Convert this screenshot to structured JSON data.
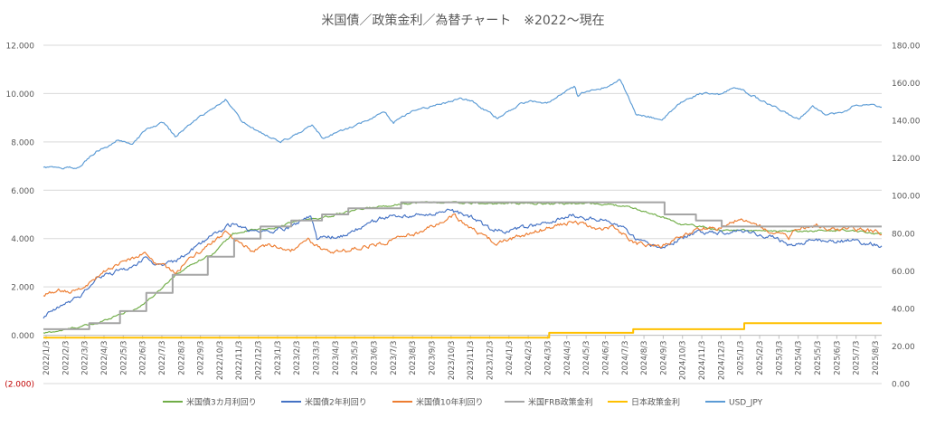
{
  "chart_data": {
    "type": "line",
    "title": "米国債／政策金利／為替チャート　※2022～現在",
    "left_axis": {
      "ylim": [
        -2,
        12
      ],
      "ticks": [
        -2,
        0,
        2,
        4,
        6,
        8,
        10,
        12
      ],
      "tick_labels": [
        "(2.000)",
        "0.000",
        "2.000",
        "4.000",
        "6.000",
        "8.000",
        "10.000",
        "12.000"
      ],
      "negative_label_color": "#c00000"
    },
    "right_axis": {
      "ylim": [
        0,
        180
      ],
      "ticks": [
        0,
        20,
        40,
        60,
        80,
        100,
        120,
        140,
        160,
        180
      ],
      "tick_labels": [
        "0.00",
        "20.00",
        "40.00",
        "60.00",
        "80.00",
        "100.00",
        "120.00",
        "140.00",
        "160.00",
        "180.00"
      ]
    },
    "x_axis": {
      "start": "2022/1/3",
      "end": "2025/8/31",
      "tick_labels": [
        "2022/1/3",
        "2022/2/3",
        "2022/3/3",
        "2022/4/3",
        "2022/5/3",
        "2022/6/3",
        "2022/7/3",
        "2022/8/3",
        "2022/9/3",
        "2022/10/3",
        "2022/11/3",
        "2022/12/3",
        "2023/1/3",
        "2023/2/3",
        "2023/3/3",
        "2023/4/3",
        "2023/5/3",
        "2023/6/3",
        "2023/7/3",
        "2023/8/3",
        "2023/9/3",
        "2023/10/3",
        "2023/11/3",
        "2023/12/3",
        "2024/1/3",
        "2024/2/3",
        "2024/3/3",
        "2024/4/3",
        "2024/5/3",
        "2024/6/3",
        "2024/7/3",
        "2024/8/3",
        "2024/9/3",
        "2024/10/3",
        "2024/11/3",
        "2024/12/3",
        "2025/1/3",
        "2025/2/3",
        "2025/3/3",
        "2025/4/3",
        "2025/5/3",
        "2025/6/3",
        "2025/7/3",
        "2025/8/3"
      ]
    },
    "grid": "horizontal",
    "legend_position": "bottom",
    "series": [
      {
        "name": "米国債3カ月利回り",
        "axis": "left",
        "color": "#70ad47",
        "noise": 0.04,
        "points": [
          [
            "2022/1/3",
            0.08
          ],
          [
            "2022/2/1",
            0.2
          ],
          [
            "2022/3/1",
            0.35
          ],
          [
            "2022/4/1",
            0.5
          ],
          [
            "2022/5/1",
            0.85
          ],
          [
            "2022/6/1",
            1.1
          ],
          [
            "2022/7/1",
            1.7
          ],
          [
            "2022/8/1",
            2.5
          ],
          [
            "2022/9/1",
            3.0
          ],
          [
            "2022/10/1",
            3.4
          ],
          [
            "2022/11/1",
            4.2
          ],
          [
            "2022/12/1",
            4.35
          ],
          [
            "2023/1/1",
            4.4
          ],
          [
            "2023/2/1",
            4.65
          ],
          [
            "2023/3/1",
            4.8
          ],
          [
            "2023/4/1",
            4.9
          ],
          [
            "2023/5/1",
            5.1
          ],
          [
            "2023/6/1",
            5.25
          ],
          [
            "2023/7/1",
            5.35
          ],
          [
            "2023/8/1",
            5.45
          ],
          [
            "2023/9/1",
            5.5
          ],
          [
            "2023/10/1",
            5.5
          ],
          [
            "2023/12/1",
            5.45
          ],
          [
            "2024/3/1",
            5.45
          ],
          [
            "2024/6/1",
            5.45
          ],
          [
            "2024/7/15",
            5.35
          ],
          [
            "2024/8/15",
            5.15
          ],
          [
            "2024/9/15",
            4.9
          ],
          [
            "2024/10/15",
            4.6
          ],
          [
            "2024/11/15",
            4.5
          ],
          [
            "2024/12/15",
            4.35
          ],
          [
            "2025/1/15",
            4.35
          ],
          [
            "2025/3/1",
            4.3
          ],
          [
            "2025/5/1",
            4.3
          ],
          [
            "2025/7/1",
            4.35
          ],
          [
            "2025/8/31",
            4.2
          ]
        ]
      },
      {
        "name": "米国債2年利回り",
        "axis": "left",
        "color": "#4472c4",
        "noise": 0.09,
        "points": [
          [
            "2022/1/3",
            0.75
          ],
          [
            "2022/2/1",
            1.2
          ],
          [
            "2022/3/1",
            1.6
          ],
          [
            "2022/4/1",
            2.4
          ],
          [
            "2022/5/1",
            2.65
          ],
          [
            "2022/6/1",
            2.9
          ],
          [
            "2022/6/15",
            3.3
          ],
          [
            "2022/7/1",
            2.9
          ],
          [
            "2022/8/1",
            3.05
          ],
          [
            "2022/9/1",
            3.6
          ],
          [
            "2022/10/1",
            4.2
          ],
          [
            "2022/11/1",
            4.6
          ],
          [
            "2022/12/1",
            4.3
          ],
          [
            "2023/1/1",
            4.3
          ],
          [
            "2023/2/1",
            4.5
          ],
          [
            "2023/3/5",
            4.95
          ],
          [
            "2023/3/15",
            4.0
          ],
          [
            "2023/4/1",
            4.05
          ],
          [
            "2023/5/1",
            4.1
          ],
          [
            "2023/6/1",
            4.6
          ],
          [
            "2023/7/1",
            4.9
          ],
          [
            "2023/8/1",
            4.9
          ],
          [
            "2023/9/1",
            5.0
          ],
          [
            "2023/10/15",
            5.15
          ],
          [
            "2023/11/15",
            4.9
          ],
          [
            "2023/12/15",
            4.4
          ],
          [
            "2024/1/15",
            4.3
          ],
          [
            "2024/2/15",
            4.5
          ],
          [
            "2024/3/15",
            4.6
          ],
          [
            "2024/4/25",
            5.0
          ],
          [
            "2024/5/15",
            4.85
          ],
          [
            "2024/6/15",
            4.75
          ],
          [
            "2024/7/15",
            4.45
          ],
          [
            "2024/8/5",
            3.9
          ],
          [
            "2024/9/15",
            3.6
          ],
          [
            "2024/10/15",
            4.0
          ],
          [
            "2024/11/15",
            4.3
          ],
          [
            "2024/12/15",
            4.25
          ],
          [
            "2025/1/15",
            4.35
          ],
          [
            "2025/2/15",
            4.2
          ],
          [
            "2025/3/15",
            4.0
          ],
          [
            "2025/4/10",
            3.7
          ],
          [
            "2025/5/15",
            3.95
          ],
          [
            "2025/6/15",
            3.9
          ],
          [
            "2025/7/15",
            3.9
          ],
          [
            "2025/8/31",
            3.7
          ]
        ]
      },
      {
        "name": "米国債10年利回り",
        "axis": "left",
        "color": "#ed7d31",
        "noise": 0.09,
        "points": [
          [
            "2022/1/3",
            1.65
          ],
          [
            "2022/2/1",
            1.85
          ],
          [
            "2022/3/1",
            1.85
          ],
          [
            "2022/4/1",
            2.5
          ],
          [
            "2022/5/1",
            2.95
          ],
          [
            "2022/6/14",
            3.4
          ],
          [
            "2022/7/1",
            2.95
          ],
          [
            "2022/8/1",
            2.65
          ],
          [
            "2022/9/1",
            3.3
          ],
          [
            "2022/10/20",
            4.25
          ],
          [
            "2022/11/1",
            4.0
          ],
          [
            "2022/12/1",
            3.5
          ],
          [
            "2023/1/1",
            3.7
          ],
          [
            "2023/2/1",
            3.5
          ],
          [
            "2023/3/1",
            3.9
          ],
          [
            "2023/4/1",
            3.45
          ],
          [
            "2023/5/1",
            3.5
          ],
          [
            "2023/6/1",
            3.7
          ],
          [
            "2023/7/1",
            3.85
          ],
          [
            "2023/8/1",
            4.1
          ],
          [
            "2023/9/1",
            4.3
          ],
          [
            "2023/10/19",
            4.95
          ],
          [
            "2023/11/15",
            4.4
          ],
          [
            "2023/12/27",
            3.8
          ],
          [
            "2024/2/1",
            4.1
          ],
          [
            "2024/4/25",
            4.7
          ],
          [
            "2024/6/1",
            4.4
          ],
          [
            "2024/7/1",
            4.45
          ],
          [
            "2024/8/5",
            3.8
          ],
          [
            "2024/9/15",
            3.65
          ],
          [
            "2024/10/15",
            4.1
          ],
          [
            "2024/11/15",
            4.45
          ],
          [
            "2024/12/15",
            4.4
          ],
          [
            "2025/1/14",
            4.8
          ],
          [
            "2025/2/15",
            4.5
          ],
          [
            "2025/3/15",
            4.25
          ],
          [
            "2025/4/5",
            4.0
          ],
          [
            "2025/4/15",
            4.45
          ],
          [
            "2025/5/20",
            4.55
          ],
          [
            "2025/6/15",
            4.35
          ],
          [
            "2025/7/15",
            4.4
          ],
          [
            "2025/8/31",
            4.25
          ]
        ]
      },
      {
        "name": "米国FRB政策金利",
        "axis": "left",
        "color": "#a5a5a5",
        "step": true,
        "points": [
          [
            "2022/1/3",
            0.25
          ],
          [
            "2022/3/17",
            0.5
          ],
          [
            "2022/5/5",
            1.0
          ],
          [
            "2022/6/16",
            1.75
          ],
          [
            "2022/7/28",
            2.5
          ],
          [
            "2022/9/22",
            3.25
          ],
          [
            "2022/11/3",
            4.0
          ],
          [
            "2022/12/15",
            4.5
          ],
          [
            "2023/2/2",
            4.75
          ],
          [
            "2023/3/23",
            5.0
          ],
          [
            "2023/5/4",
            5.25
          ],
          [
            "2023/7/27",
            5.5
          ],
          [
            "2024/9/19",
            5.0
          ],
          [
            "2024/11/8",
            4.75
          ],
          [
            "2024/12/19",
            4.5
          ],
          [
            "2025/8/31",
            4.5
          ]
        ]
      },
      {
        "name": "日本政策金利",
        "axis": "left",
        "color": "#ffc000",
        "step": true,
        "points": [
          [
            "2022/1/3",
            -0.1
          ],
          [
            "2024/3/19",
            0.1
          ],
          [
            "2024/7/31",
            0.25
          ],
          [
            "2025/1/24",
            0.5
          ],
          [
            "2025/8/31",
            0.5
          ]
        ]
      },
      {
        "name": "USD_JPY",
        "axis": "right",
        "color": "#5b9bd5",
        "noise": 0.6,
        "points": [
          [
            "2022/1/3",
            115.3
          ],
          [
            "2022/2/1",
            114.7
          ],
          [
            "2022/3/1",
            115.0
          ],
          [
            "2022/3/28",
            123.5
          ],
          [
            "2022/4/15",
            126.5
          ],
          [
            "2022/5/1",
            129.5
          ],
          [
            "2022/5/25",
            127.0
          ],
          [
            "2022/6/15",
            135.0
          ],
          [
            "2022/7/14",
            139.0
          ],
          [
            "2022/8/1",
            131.5
          ],
          [
            "2022/9/1",
            140.0
          ],
          [
            "2022/10/21",
            151.5
          ],
          [
            "2022/11/15",
            139.5
          ],
          [
            "2022/12/1",
            136.0
          ],
          [
            "2023/1/16",
            128.5
          ],
          [
            "2023/2/1",
            131.0
          ],
          [
            "2023/3/8",
            137.5
          ],
          [
            "2023/3/24",
            130.5
          ],
          [
            "2023/4/15",
            133.5
          ],
          [
            "2023/5/15",
            137.0
          ],
          [
            "2023/6/30",
            144.8
          ],
          [
            "2023/7/15",
            139.0
          ],
          [
            "2023/8/15",
            145.5
          ],
          [
            "2023/9/15",
            147.5
          ],
          [
            "2023/10/31",
            151.5
          ],
          [
            "2023/11/15",
            150.5
          ],
          [
            "2023/12/28",
            141.0
          ],
          [
            "2024/1/15",
            145.5
          ],
          [
            "2024/2/15",
            150.5
          ],
          [
            "2024/3/15",
            149.0
          ],
          [
            "2024/4/29",
            158.0
          ],
          [
            "2024/5/3",
            152.5
          ],
          [
            "2024/5/15",
            155.5
          ],
          [
            "2024/6/15",
            157.5
          ],
          [
            "2024/7/10",
            161.7
          ],
          [
            "2024/8/5",
            143.0
          ],
          [
            "2024/9/16",
            140.5
          ],
          [
            "2024/10/15",
            149.5
          ],
          [
            "2024/11/15",
            154.5
          ],
          [
            "2024/12/15",
            153.5
          ],
          [
            "2025/1/10",
            158.0
          ],
          [
            "2025/2/15",
            151.5
          ],
          [
            "2025/3/10",
            147.5
          ],
          [
            "2025/4/21",
            140.5
          ],
          [
            "2025/5/12",
            148.0
          ],
          [
            "2025/6/1",
            143.5
          ],
          [
            "2025/7/1",
            144.0
          ],
          [
            "2025/7/20",
            148.5
          ],
          [
            "2025/8/31",
            147.5
          ]
        ]
      }
    ]
  }
}
